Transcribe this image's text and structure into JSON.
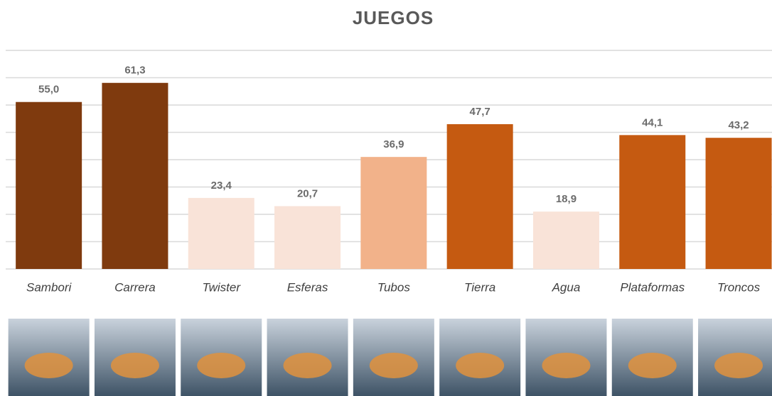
{
  "chart_data": {
    "type": "bar",
    "title": "JUEGOS",
    "categories": [
      "Sambori",
      "Carrera",
      "Twister",
      "Esferas",
      "Tubos",
      "Tierra",
      "Agua",
      "Plataformas",
      "Troncos"
    ],
    "values": [
      55.0,
      61.3,
      23.4,
      20.7,
      36.9,
      47.7,
      18.9,
      44.1,
      43.2
    ],
    "value_labels": [
      "55,0",
      "61,3",
      "23,4",
      "20,7",
      "36,9",
      "47,7",
      "18,9",
      "44,1",
      "43,2"
    ],
    "colors": [
      "#7f3a0e",
      "#7f3a0e",
      "#f9e3d8",
      "#f9e3d8",
      "#f2b28a",
      "#c55a11",
      "#f9e3d8",
      "#c55a11",
      "#c55a11"
    ],
    "ylim": [
      0,
      72
    ],
    "yticks": [
      0,
      9,
      18,
      27,
      36,
      45,
      54,
      63,
      72
    ],
    "grid": true
  }
}
